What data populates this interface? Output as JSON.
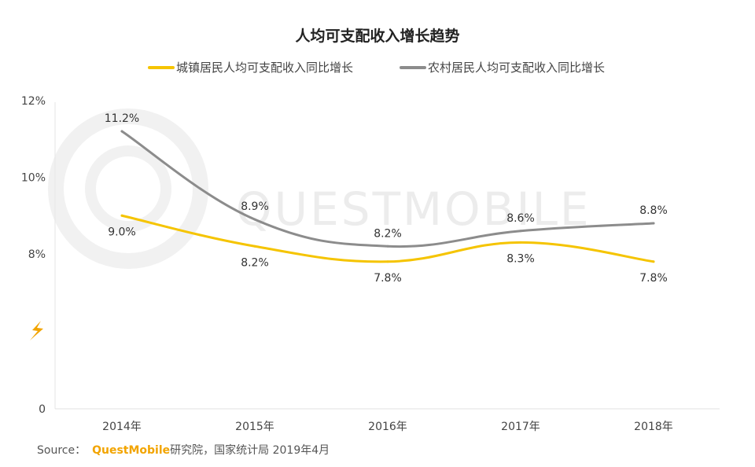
{
  "chart_data": {
    "type": "line",
    "title": "人均可支配收入增长趋势",
    "categories": [
      "2014年",
      "2015年",
      "2016年",
      "2017年",
      "2018年"
    ],
    "series": [
      {
        "name": "城镇居民人均可支配收入同比增长",
        "color": "#f5c400",
        "values": [
          9.0,
          8.2,
          7.8,
          8.3,
          7.8
        ],
        "labels": [
          "9.0%",
          "8.2%",
          "7.8%",
          "8.3%",
          "7.8%"
        ],
        "label_position": "below"
      },
      {
        "name": "农村居民人均可支配收入同比增长",
        "color": "#8c8c8c",
        "values": [
          11.2,
          8.9,
          8.2,
          8.6,
          8.8
        ],
        "labels": [
          "11.2%",
          "8.9%",
          "8.2%",
          "8.6%",
          "8.8%"
        ],
        "label_position": "above"
      }
    ],
    "y_ticks": [
      {
        "value": 12,
        "label": "12%"
      },
      {
        "value": 10,
        "label": "10%"
      },
      {
        "value": 8,
        "label": "8%"
      },
      {
        "value": 0,
        "label": "0"
      }
    ],
    "y_axis_break": true,
    "y_axis_break_icon": "lightning-break-icon",
    "grid": false,
    "legend_position": "top-center"
  },
  "watermark": "QUESTMOBILE",
  "source": {
    "prefix": "Source：",
    "brand": "QuestMobile",
    "rest": "研究院，国家统计局 2019年4月"
  }
}
